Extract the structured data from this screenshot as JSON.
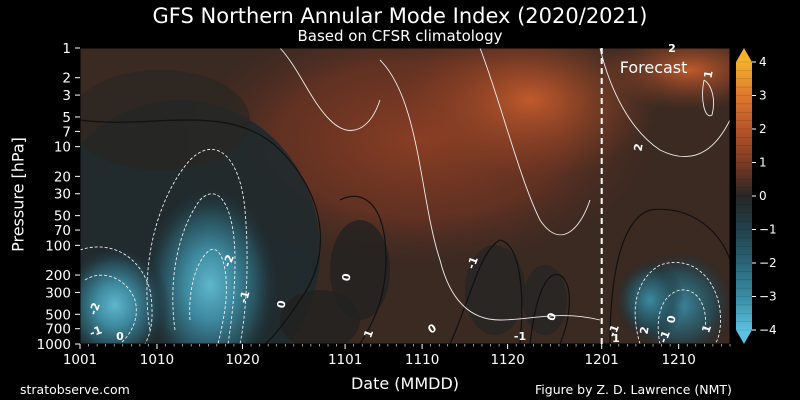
{
  "chart_data": {
    "type": "heatmap",
    "title": "GFS Northern Annular Mode Index (2020/2021)",
    "subtitle": "Based on CFSR climatology",
    "xlabel": "Date (MMDD)",
    "ylabel": "Pressure [hPa]",
    "x_ticks": [
      "1001",
      "1010",
      "1020",
      "1101",
      "1110",
      "1120",
      "1201",
      "1210"
    ],
    "x_tick_day_index": [
      0,
      9,
      19,
      31,
      40,
      50,
      61,
      70
    ],
    "x_range_days": [
      0,
      76
    ],
    "y_ticks": [
      1,
      2,
      3,
      5,
      7,
      10,
      20,
      30,
      50,
      70,
      100,
      200,
      300,
      500,
      700,
      1000
    ],
    "y_scale": "log",
    "y_range": [
      1000,
      1
    ],
    "forecast_start_day_index": 61,
    "forecast_label": "Forecast",
    "colorbar": {
      "ticks": [
        4,
        3,
        2,
        1,
        0,
        -1,
        -2,
        -3,
        -4
      ],
      "range": [
        -4,
        4
      ],
      "colors_high": "#f0a030",
      "colors_low": "#3aa0c0"
    },
    "contour_labels": [
      "-2",
      "-1",
      "-2",
      "-1",
      "0",
      "0",
      "0",
      "-1",
      "0",
      "0",
      "1",
      "-1",
      "-1",
      "2",
      "2",
      "0",
      "1",
      "-1",
      "1",
      "2",
      "1"
    ],
    "grid": false,
    "credits": {
      "left": "stratobserve.com",
      "right": "Figure by Z. D. Lawrence (NMT)"
    }
  }
}
